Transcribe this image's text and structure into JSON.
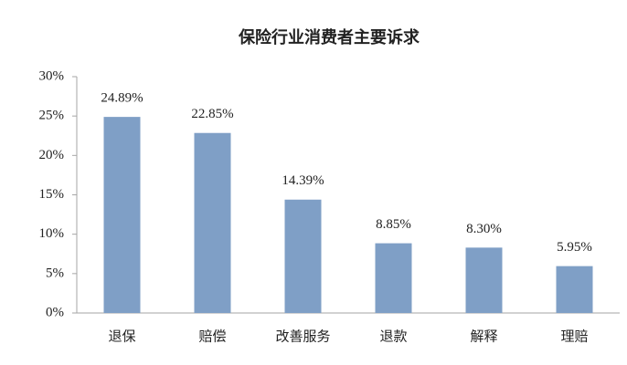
{
  "chart_data": {
    "type": "bar",
    "title": "保险行业消费者主要诉求",
    "categories": [
      "退保",
      "赔偿",
      "改善服务",
      "退款",
      "解释",
      "理赔"
    ],
    "values": [
      24.89,
      22.85,
      14.39,
      8.85,
      8.3,
      5.95
    ],
    "value_labels": [
      "24.89%",
      "22.85%",
      "14.39%",
      "8.85%",
      "8.30%",
      "5.95%"
    ],
    "color": "#7f9fc6",
    "ylim": [
      0,
      30
    ],
    "yticks": [
      {
        "value": 0,
        "label": "0%"
      },
      {
        "value": 5,
        "label": "5%"
      },
      {
        "value": 10,
        "label": "10%"
      },
      {
        "value": 15,
        "label": "15%"
      },
      {
        "value": 20,
        "label": "20%"
      },
      {
        "value": 25,
        "label": "25%"
      },
      {
        "value": 30,
        "label": "30%"
      }
    ],
    "grid": false
  }
}
